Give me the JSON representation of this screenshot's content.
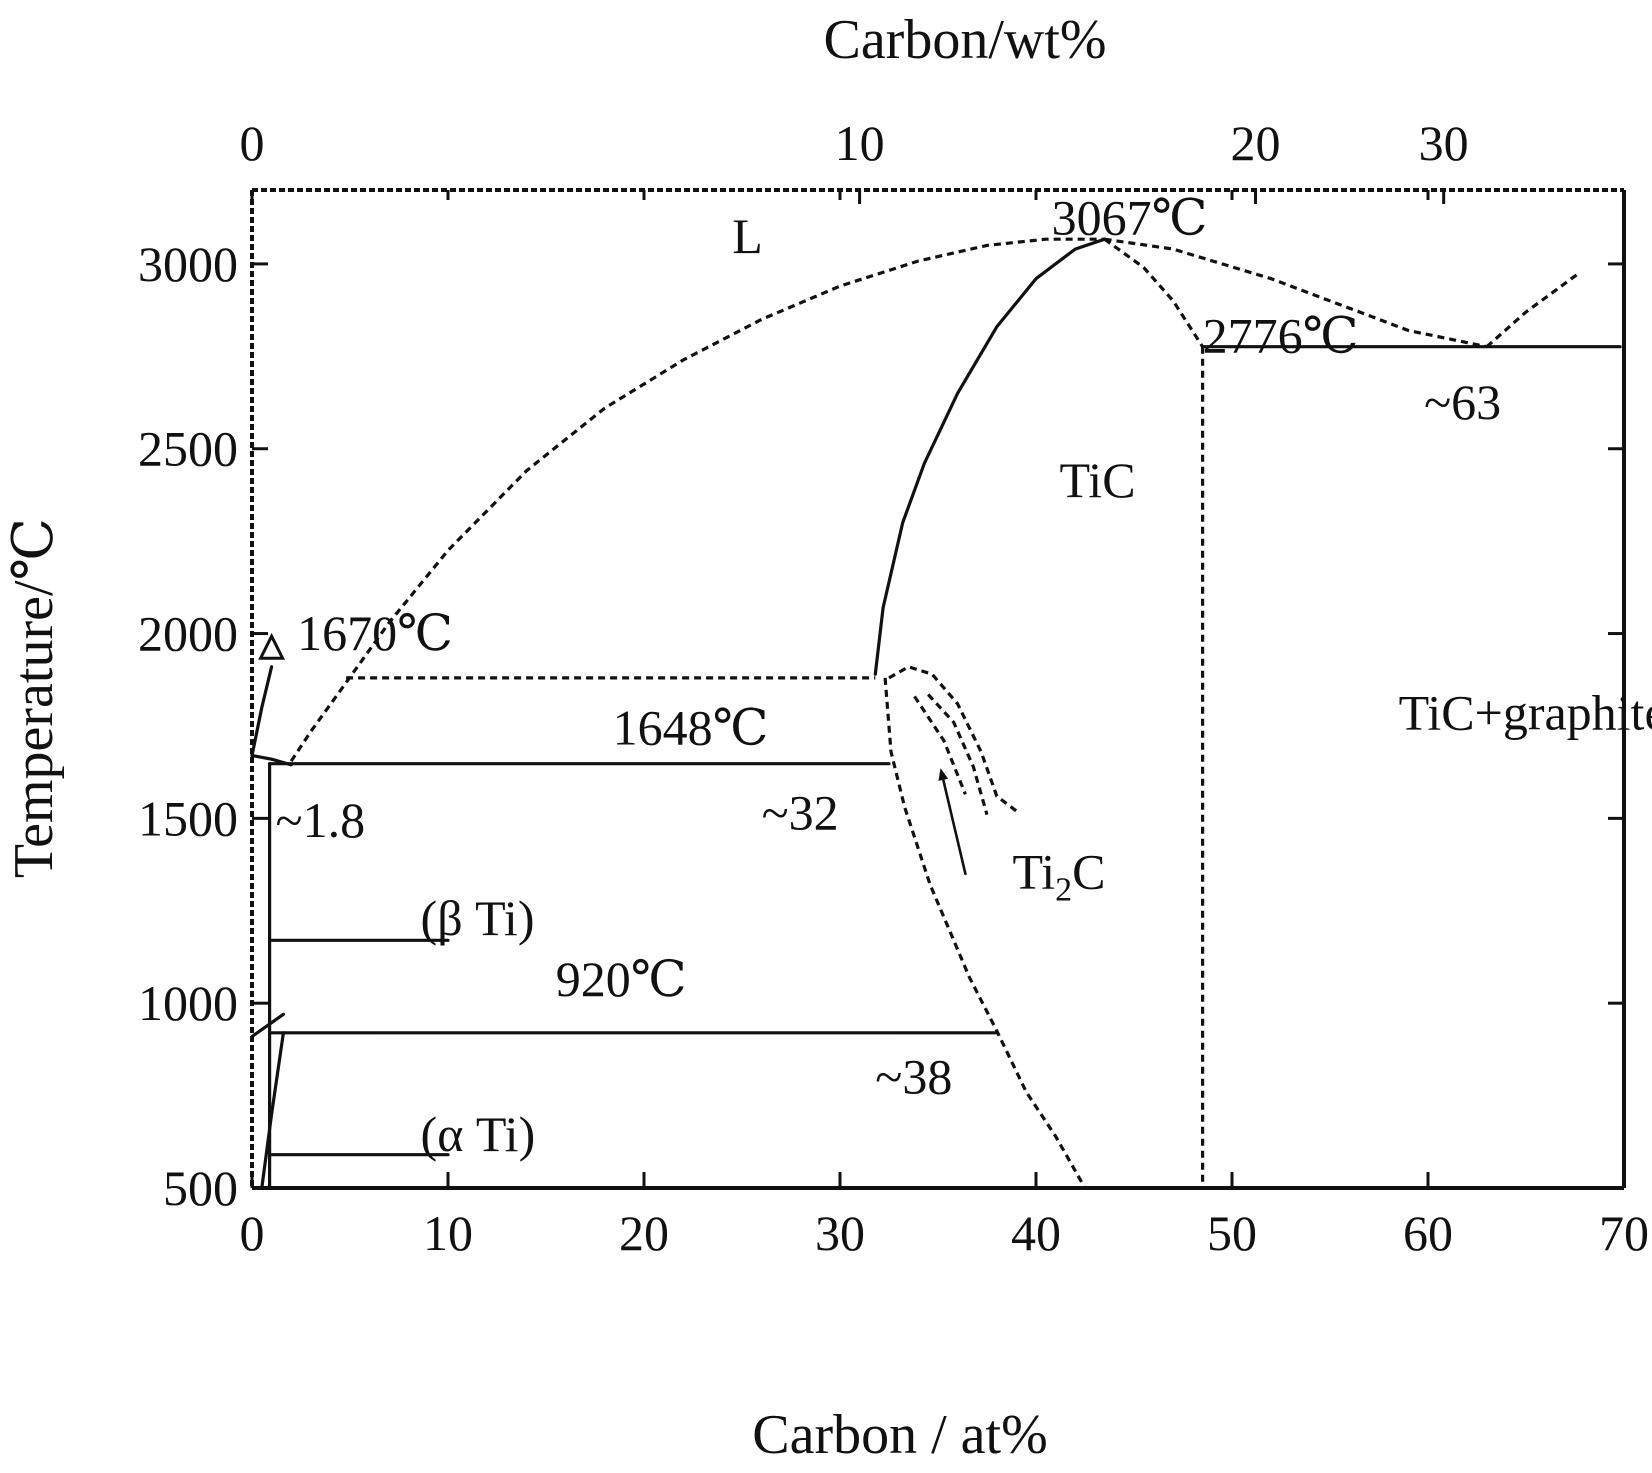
{
  "chart_data": {
    "type": "line",
    "subtype": "binary-phase-diagram",
    "xlabel": "Carbon / at%",
    "x2label": "Carbon/wt%",
    "ylabel": "Temperature/℃",
    "xlim": [
      0,
      70
    ],
    "ylim": [
      500,
      3200
    ],
    "x_ticks": [
      0,
      10,
      20,
      30,
      40,
      50,
      60,
      70
    ],
    "y_ticks": [
      500,
      1000,
      1500,
      2000,
      2500,
      3000
    ],
    "x2_ticks": [
      {
        "label": "0",
        "at_x": 0
      },
      {
        "label": "10",
        "at_x": 31
      },
      {
        "label": "20",
        "at_x": 51.2
      },
      {
        "label": "30",
        "at_x": 60.8
      }
    ],
    "grid": false,
    "legend": "none",
    "ink_color": "#111111",
    "regions": [
      {
        "label": "L",
        "x": 24.5,
        "y": 3030
      },
      {
        "label": "TiC",
        "x": 41.2,
        "y": 2370
      },
      {
        "label": "TiC+graphite",
        "x": 58.5,
        "y": 1740
      },
      {
        "label": "Ti",
        "sub": "2",
        "tail": "C",
        "x": 38.8,
        "y": 1310
      },
      {
        "label": "(β Ti)",
        "x": 8.6,
        "y": 1185
      },
      {
        "label": "(α Ti)",
        "x": 8.6,
        "y": 600
      }
    ],
    "annotations": [
      {
        "label": "1670℃",
        "x": 2.3,
        "y": 1955
      },
      {
        "label": "1648℃",
        "x": 18.4,
        "y": 1700
      },
      {
        "label": "~1.8",
        "x": 1.2,
        "y": 1450
      },
      {
        "label": "~32",
        "x": 26.0,
        "y": 1470
      },
      {
        "label": "920℃",
        "x": 15.5,
        "y": 1020
      },
      {
        "label": "~38",
        "x": 31.8,
        "y": 755
      },
      {
        "label": "3067℃",
        "x": 40.8,
        "y": 3080
      },
      {
        "label": "2776℃",
        "x": 48.5,
        "y": 2760
      },
      {
        "label": "~63",
        "x": 59.8,
        "y": 2580
      }
    ],
    "series": [
      {
        "style": "dashed",
        "points": [
          [
            2,
            1655
          ],
          [
            3,
            1735
          ],
          [
            4.5,
            1845
          ],
          [
            7,
            2030
          ],
          [
            10,
            2225
          ],
          [
            14,
            2440
          ],
          [
            18,
            2610
          ],
          [
            22,
            2740
          ],
          [
            26,
            2850
          ],
          [
            30,
            2940
          ],
          [
            34,
            3008
          ],
          [
            37.5,
            3050
          ],
          [
            40.5,
            3067
          ],
          [
            43.5,
            3067
          ]
        ]
      },
      {
        "style": "dashed",
        "points": [
          [
            43.5,
            3067
          ],
          [
            47,
            3040
          ],
          [
            52,
            2960
          ],
          [
            56,
            2880
          ],
          [
            59,
            2820
          ],
          [
            63,
            2776
          ]
        ]
      },
      {
        "style": "dashed",
        "points": [
          [
            63,
            2776
          ],
          [
            65,
            2870
          ],
          [
            67.7,
            2975
          ]
        ]
      },
      {
        "style": "solid",
        "points": [
          [
            31.8,
            1890
          ],
          [
            32.2,
            2070
          ],
          [
            33.2,
            2300
          ],
          [
            34.3,
            2460
          ],
          [
            36,
            2650
          ],
          [
            38,
            2830
          ],
          [
            40,
            2960
          ],
          [
            42,
            3040
          ],
          [
            43.5,
            3067
          ]
        ]
      },
      {
        "style": "dashed",
        "points": [
          [
            43.5,
            3067
          ],
          [
            45.5,
            2990
          ],
          [
            47,
            2900
          ],
          [
            48.5,
            2776
          ]
        ]
      },
      {
        "style": "dashed",
        "points": [
          [
            48.5,
            2776
          ],
          [
            48.5,
            500
          ]
        ]
      },
      {
        "style": "solid",
        "points": [
          [
            48.5,
            2776
          ],
          [
            69.8,
            2776
          ]
        ]
      },
      {
        "style": "dashed",
        "points": [
          [
            4.8,
            1880
          ],
          [
            31.8,
            1880
          ]
        ]
      },
      {
        "style": "solid",
        "points": [
          [
            0.9,
            1648
          ],
          [
            32.5,
            1648
          ]
        ]
      },
      {
        "style": "solid",
        "points": [
          [
            0.9,
            920
          ],
          [
            38,
            920
          ]
        ]
      },
      {
        "style": "solid",
        "points": [
          [
            0.9,
            500
          ],
          [
            0.9,
            1648
          ]
        ]
      },
      {
        "style": "solid",
        "points": [
          [
            0,
            1670
          ],
          [
            0.5,
            1800
          ],
          [
            1,
            1910
          ]
        ]
      },
      {
        "style": "solid",
        "points": [
          [
            0,
            1670
          ],
          [
            1,
            1660
          ],
          [
            2,
            1645
          ]
        ]
      },
      {
        "style": "solid",
        "points": [
          [
            0.5,
            500
          ],
          [
            1,
            700
          ],
          [
            1.6,
            920
          ]
        ]
      },
      {
        "style": "solid",
        "points": [
          [
            0,
            910
          ],
          [
            0.8,
            940
          ],
          [
            1.6,
            970
          ]
        ]
      },
      {
        "style": "dashed",
        "points": [
          [
            32.3,
            1880
          ],
          [
            32.6,
            1680
          ],
          [
            33.3,
            1530
          ],
          [
            34.6,
            1320
          ],
          [
            36.6,
            1070
          ],
          [
            38,
            925
          ],
          [
            39.5,
            760
          ],
          [
            41,
            640
          ],
          [
            42.5,
            500
          ]
        ]
      },
      {
        "style": "dashed",
        "points": [
          [
            32.5,
            1880
          ],
          [
            33.5,
            1910
          ],
          [
            34.7,
            1890
          ],
          [
            36,
            1810
          ],
          [
            37.2,
            1680
          ],
          [
            38,
            1560
          ],
          [
            39,
            1520
          ]
        ]
      },
      {
        "style": "dashed",
        "points": [
          [
            34.5,
            1835
          ],
          [
            35.8,
            1760
          ],
          [
            36.8,
            1640
          ],
          [
            37.5,
            1510
          ]
        ]
      },
      {
        "style": "dashed",
        "points": [
          [
            33.8,
            1830
          ],
          [
            35.3,
            1710
          ],
          [
            36.4,
            1565
          ]
        ]
      },
      {
        "style": "arrow",
        "points": [
          [
            36.4,
            1350
          ],
          [
            35.2,
            1620
          ]
        ]
      },
      {
        "style": "solid",
        "points": [
          [
            10,
            1170
          ],
          [
            1,
            1170
          ]
        ]
      },
      {
        "style": "solid",
        "points": [
          [
            10,
            590
          ],
          [
            1,
            590
          ]
        ]
      }
    ],
    "markers": [
      {
        "shape": "open-triangle",
        "x": 1.0,
        "y": 1955
      }
    ]
  }
}
